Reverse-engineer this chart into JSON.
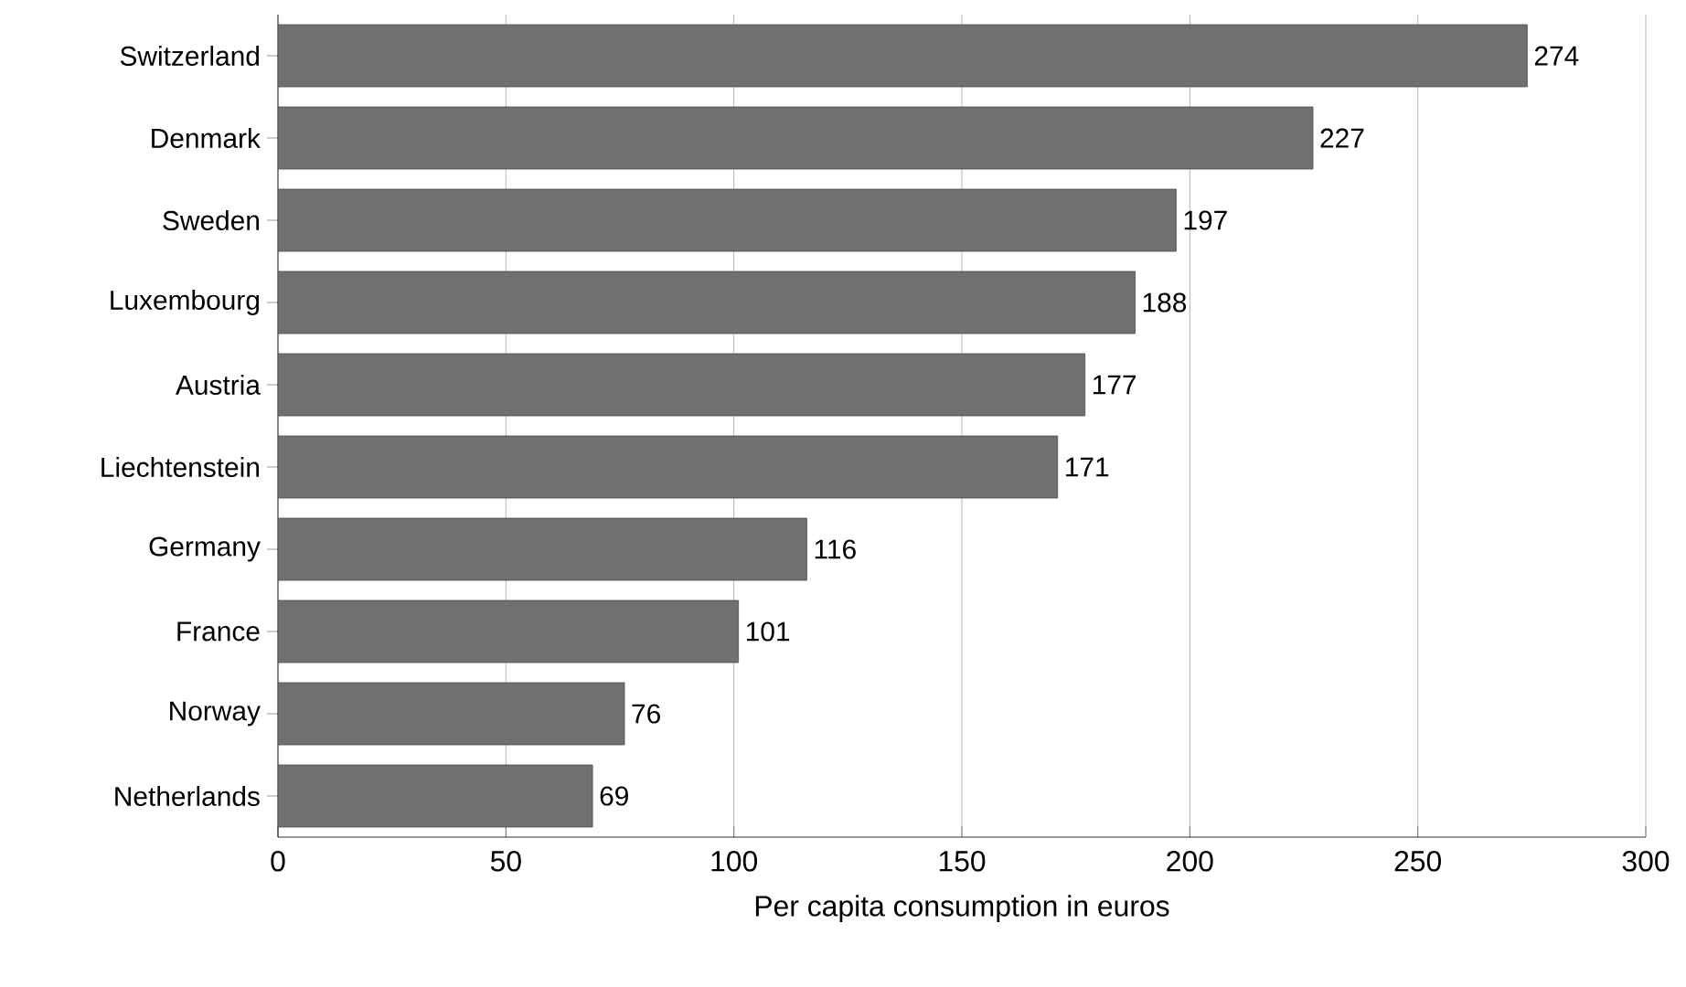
{
  "chart_data": {
    "type": "bar",
    "orientation": "horizontal",
    "xlabel": "Per capita consumption in euros",
    "categories": [
      "Switzerland",
      "Denmark",
      "Sweden",
      "Luxembourg",
      "Austria",
      "Liechtenstein",
      "Germany",
      "France",
      "Norway",
      "Netherlands"
    ],
    "values": [
      274,
      227,
      197,
      188,
      177,
      171,
      116,
      101,
      76,
      69
    ],
    "color": "#707070",
    "data_labels": true,
    "grid": "x",
    "xlim": [
      0,
      300
    ],
    "xticks": [
      0,
      50,
      100,
      150,
      200,
      250,
      300
    ]
  }
}
